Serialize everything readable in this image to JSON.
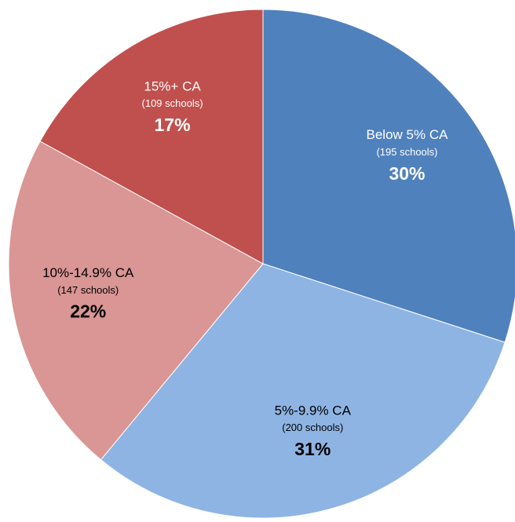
{
  "chart_data": {
    "type": "pie",
    "categories": [
      "Below 5% CA",
      "5%-9.9% CA",
      "10%-14.9% CA",
      "15%+ CA"
    ],
    "sublabels": [
      "(195 schools)",
      "(200 schools)",
      "(147 schools)",
      "(109 schools)"
    ],
    "values": [
      30,
      31,
      22,
      17
    ],
    "value_labels": [
      "30%",
      "31%",
      "22%",
      "17%"
    ],
    "colors": [
      "#4f81bd",
      "#8eb4e3",
      "#d99694",
      "#c0504d"
    ],
    "label_colors": [
      "#ffffff",
      "#000000",
      "#000000",
      "#ffffff"
    ]
  }
}
